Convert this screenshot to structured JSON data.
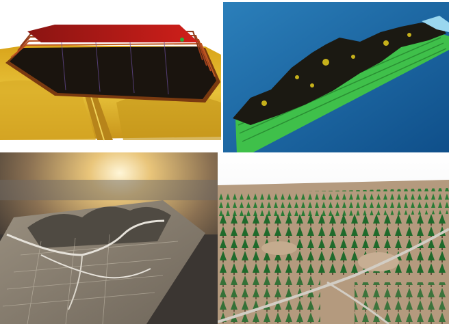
{
  "figure": {
    "panels": [
      {
        "id": "tl",
        "subject": "3d-terraced-landfill-model",
        "colors": {
          "top": "#c11a1a",
          "terrain": "#e2b821",
          "sky": "#ffffff"
        }
      },
      {
        "id": "tr",
        "subject": "3d-ridge-terrain-model",
        "colors": {
          "background": "#1a6aa8",
          "base": "#41c44a",
          "terrain": "#1d1a12"
        }
      },
      {
        "id": "bl",
        "subject": "aerial-terrain-render-with-sunset",
        "colors": {
          "sky": "#d9b878",
          "ground": "#7f7b72"
        }
      },
      {
        "id": "br",
        "subject": "forest-tree-visualization",
        "colors": {
          "trees": "#1f6a2b",
          "ground": "#b49a7e",
          "sky": "#f2f3f4"
        }
      }
    ]
  }
}
